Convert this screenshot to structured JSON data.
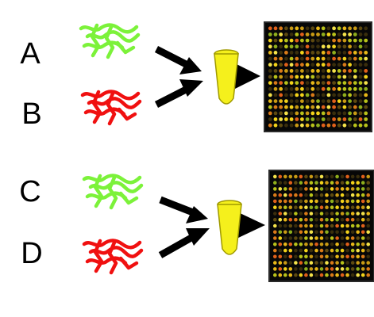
{
  "sample_labels": [
    "A",
    "B",
    "C",
    "D"
  ],
  "colors": {
    "green_sample": "#7cf23a",
    "red_sample": "#f01010",
    "tube_fill": "#f5f01c",
    "tube_stroke": "#a09a00",
    "arrow": "#000000",
    "array_background": "#070707",
    "array_frame": "#2a2a2a"
  },
  "icons": {
    "sample_strands": "squiggly-dna-strands-icon",
    "tube": "microcentrifuge-tube-icon",
    "arrow": "arrow-icon",
    "array": "microarray-spot-grid-icon"
  }
}
